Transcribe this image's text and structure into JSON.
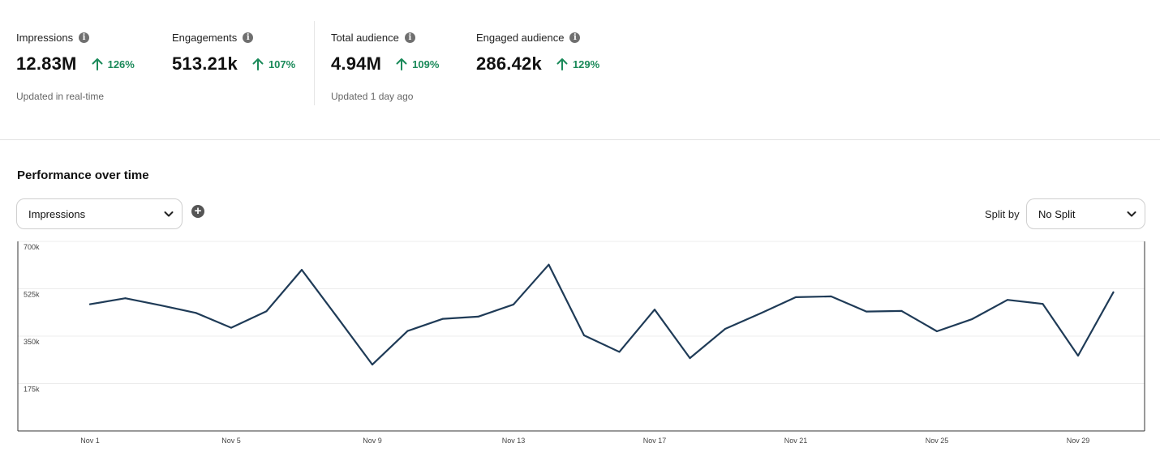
{
  "stats": [
    {
      "label": "Impressions",
      "value": "12.83M",
      "change": "126%"
    },
    {
      "label": "Engagements",
      "value": "513.21k",
      "change": "107%"
    },
    {
      "label": "Total audience",
      "value": "4.94M",
      "change": "109%"
    },
    {
      "label": "Engaged audience",
      "value": "286.42k",
      "change": "129%"
    }
  ],
  "updated_realtime": "Updated in real-time",
  "updated_audience": "Updated 1 day ago",
  "performance": {
    "title": "Performance over time",
    "metric_select": "Impressions",
    "split_label": "Split by",
    "split_select": "No Split"
  },
  "colors": {
    "line": "#1f3b57",
    "positive": "#1b8a5a"
  },
  "chart_data": {
    "type": "line",
    "x": [
      "Nov 1",
      "Nov 2",
      "Nov 3",
      "Nov 4",
      "Nov 5",
      "Nov 6",
      "Nov 7",
      "Nov 8",
      "Nov 9",
      "Nov 10",
      "Nov 11",
      "Nov 12",
      "Nov 13",
      "Nov 14",
      "Nov 15",
      "Nov 16",
      "Nov 17",
      "Nov 18",
      "Nov 19",
      "Nov 20",
      "Nov 21",
      "Nov 22",
      "Nov 23",
      "Nov 24",
      "Nov 25",
      "Nov 26",
      "Nov 27",
      "Nov 28",
      "Nov 29",
      "Nov 30"
    ],
    "x_tick_labels": [
      "Nov 1",
      "Nov 5",
      "Nov 9",
      "Nov 13",
      "Nov 17",
      "Nov 21",
      "Nov 25",
      "Nov 29"
    ],
    "y_tick_labels": [
      "700k",
      "525k",
      "350k",
      "175k"
    ],
    "ylim": [
      0,
      700000
    ],
    "y_ticks": [
      700000,
      525000,
      350000,
      175000
    ],
    "series": [
      {
        "values": [
          468000,
          490000,
          464000,
          436000,
          381000,
          442000,
          595000,
          421000,
          245000,
          369000,
          414000,
          422000,
          467000,
          614000,
          353000,
          292000,
          448000,
          269000,
          377000,
          434000,
          494000,
          497000,
          441000,
          443000,
          368000,
          413000,
          484000,
          469000,
          278000,
          512000
        ]
      }
    ],
    "grid": true
  }
}
